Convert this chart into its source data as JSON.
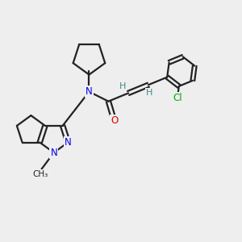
{
  "background_color": "#eeeeee",
  "bond_color": "#222222",
  "nitrogen_color": "#0000ee",
  "oxygen_color": "#dd0000",
  "chlorine_color": "#00aa00",
  "hydrogen_color": "#448888",
  "line_width": 1.6,
  "figsize": [
    3.0,
    3.0
  ],
  "dpi": 100,
  "xlim": [
    0,
    10
  ],
  "ylim": [
    0,
    10
  ]
}
